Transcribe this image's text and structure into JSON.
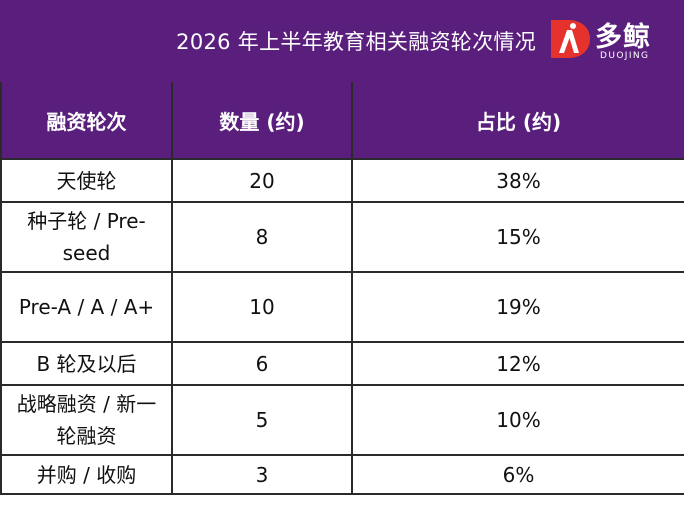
{
  "title": "2026 年上半年教育相关融资轮次情况",
  "brand": {
    "name": "多鲸",
    "sub": "DUOJING",
    "mark_color": "#e5322d",
    "mark_icon": "red-d-logo-icon"
  },
  "colors": {
    "header_bg": "#5a1f7d",
    "header_text": "#ffffff",
    "border": "#2a2a2a"
  },
  "chart_data": {
    "type": "table",
    "title": "2026 年上半年教育相关融资轮次情况",
    "columns": [
      "融资轮次",
      "数量 (约)",
      "占比 (约)"
    ],
    "rows": [
      {
        "round": "天使轮",
        "count": "20",
        "share": "38%"
      },
      {
        "round": "种子轮 / Pre-seed",
        "count": "8",
        "share": "15%"
      },
      {
        "round": "Pre-A / A / A+",
        "count": "10",
        "share": "19%"
      },
      {
        "round": "B 轮及以后",
        "count": "6",
        "share": "12%"
      },
      {
        "round": "战略融资 / 新一轮融资",
        "count": "5",
        "share": "10%"
      },
      {
        "round": "并购 / 收购",
        "count": "3",
        "share": "6%"
      }
    ]
  }
}
